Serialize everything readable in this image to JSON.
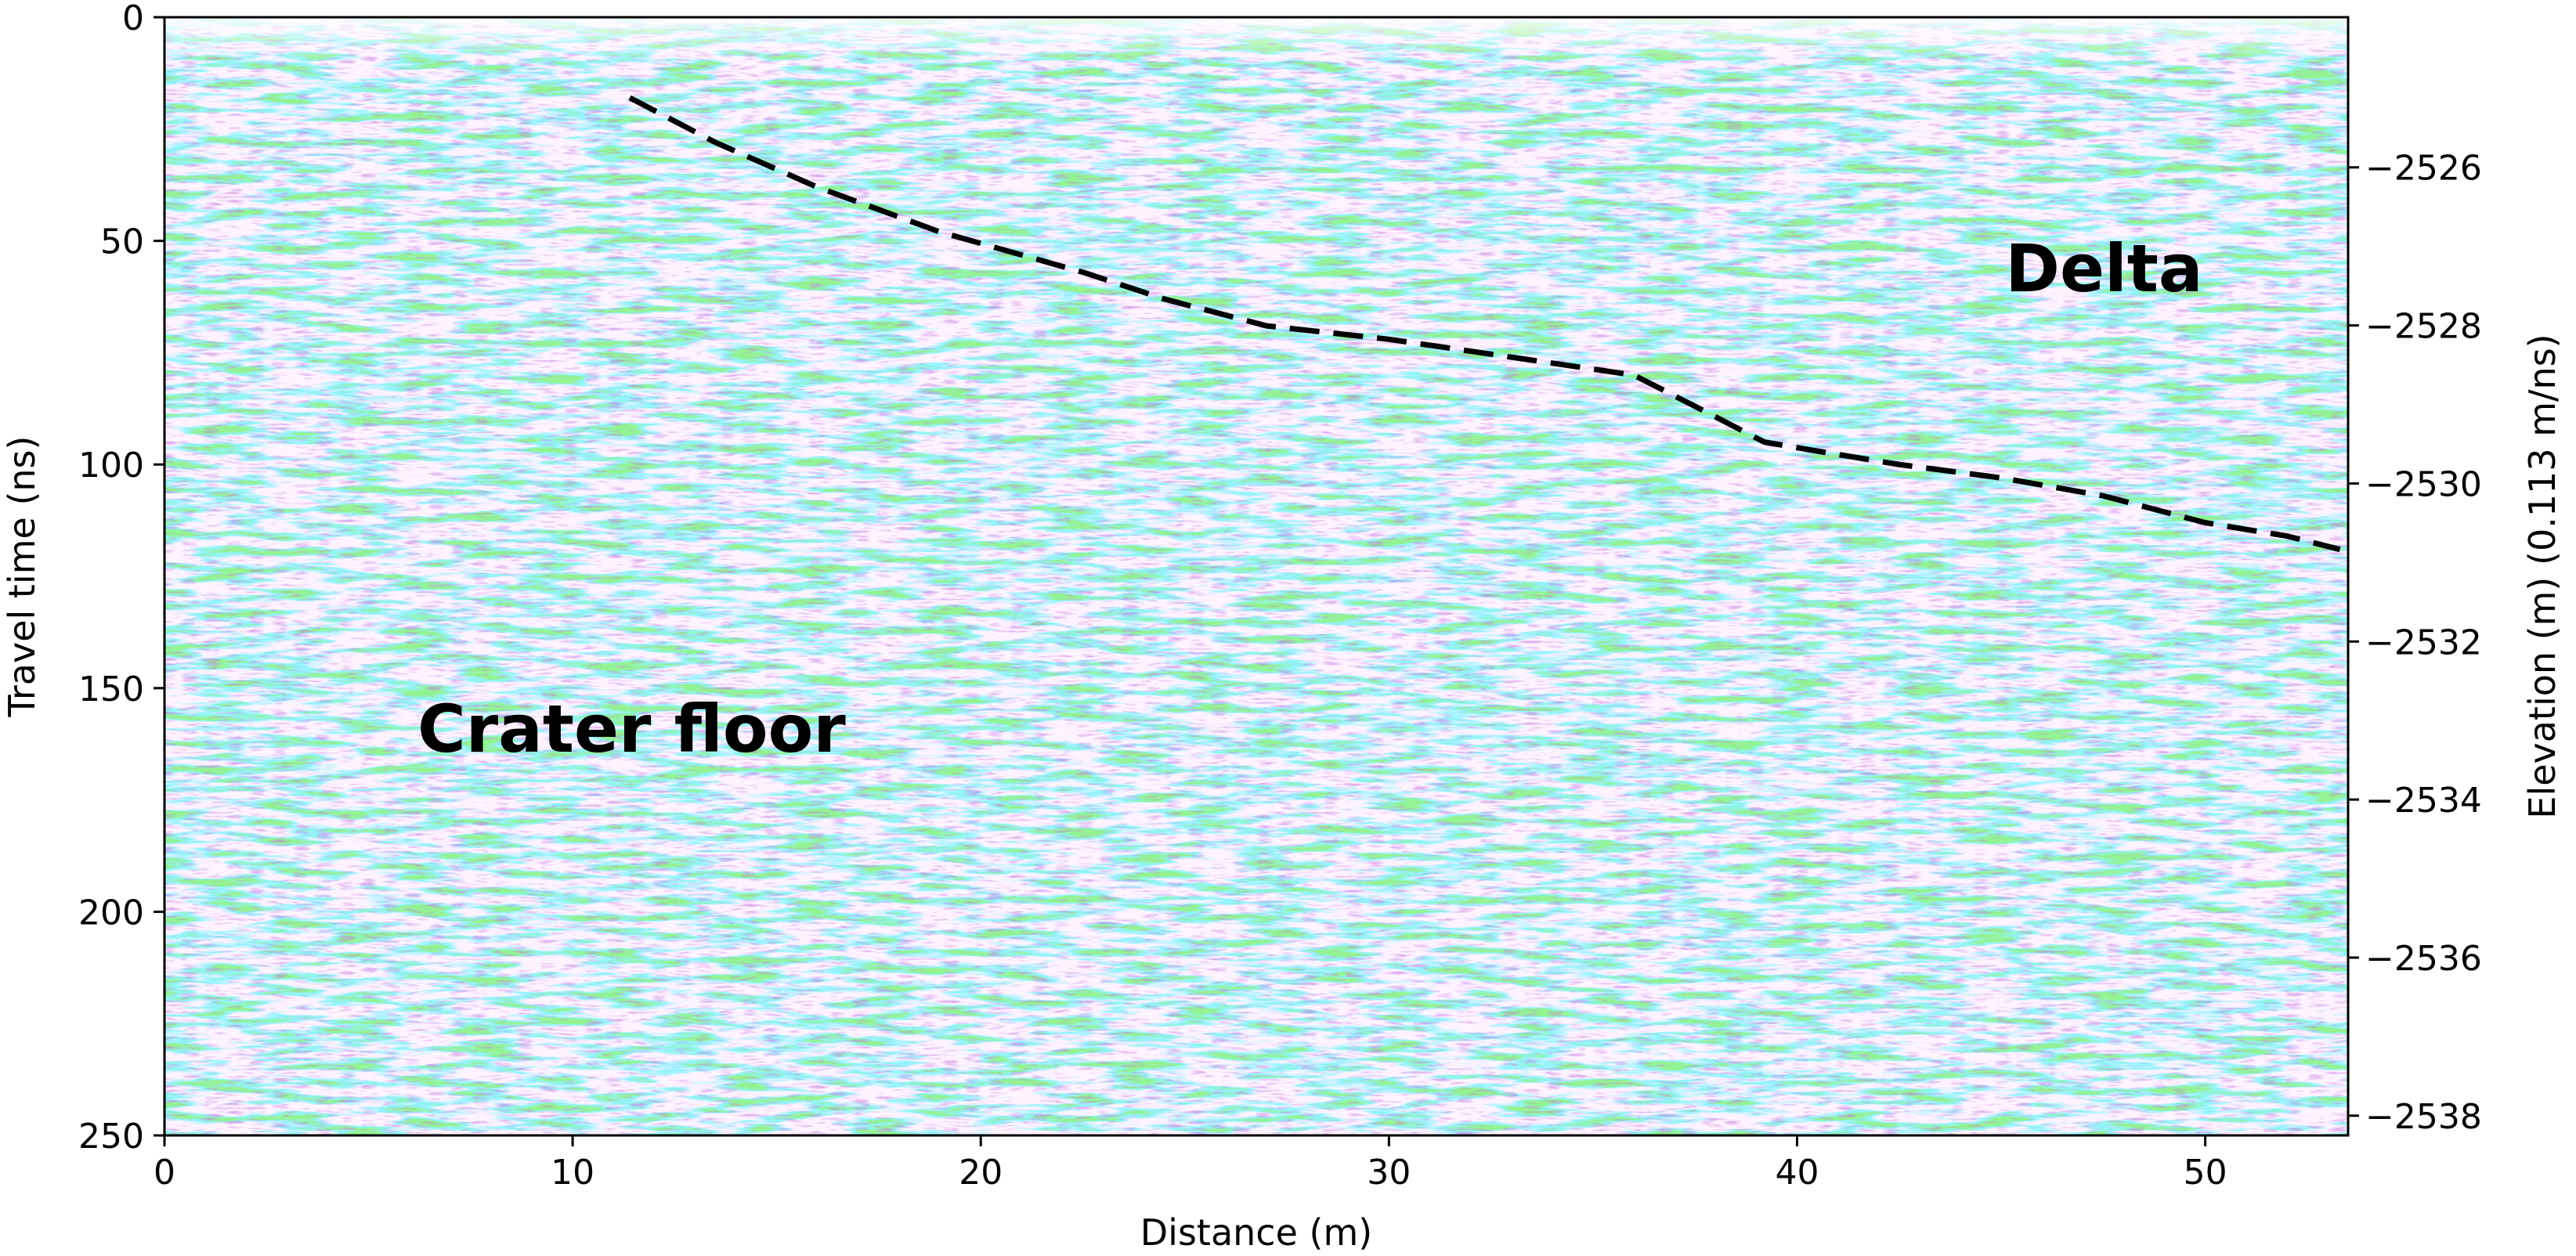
{
  "chart_data": {
    "type": "radargram",
    "title": "",
    "xlabel": "Distance (m)",
    "ylabel": "Travel time (ns)",
    "y2label": "Elevation (m) (0.113 m/ns)",
    "xlim": [
      0,
      53.5
    ],
    "ylim": [
      250,
      0
    ],
    "y2lim": [
      -2538.25,
      -2524.1
    ],
    "x_ticks": [
      0,
      10,
      20,
      30,
      40,
      50
    ],
    "x_tick_labels": [
      "0",
      "10",
      "20",
      "30",
      "40",
      "50"
    ],
    "y_ticks": [
      0,
      50,
      100,
      150,
      200,
      250
    ],
    "y_tick_labels": [
      "0",
      "50",
      "100",
      "150",
      "200",
      "250"
    ],
    "y2_ticks": [
      -2526,
      -2528,
      -2530,
      -2532,
      -2534,
      -2536,
      -2538
    ],
    "y2_tick_labels": [
      "−2526",
      "−2528",
      "−2530",
      "−2532",
      "−2534",
      "−2536",
      "−2538"
    ],
    "grid": false,
    "colormap": [
      "#2b3bd6",
      "#ffffff",
      "#d62b2b"
    ],
    "series": [
      {
        "style": "dashed",
        "color": "#000000",
        "x": [
          11.4,
          13.5,
          16.0,
          19.0,
          22.5,
          24.5,
          27.0,
          30.0,
          33.0,
          36.0,
          37.5,
          39.2,
          40.5,
          42.5,
          45.0,
          47.5,
          50.0,
          52.0,
          53.3
        ],
        "y": [
          18.0,
          28.0,
          38.0,
          48.0,
          57.0,
          63.0,
          69.0,
          72.0,
          76.0,
          80.0,
          87.0,
          95.0,
          97.0,
          100.0,
          103.0,
          107.0,
          113.0,
          116.0,
          119.0
        ]
      }
    ],
    "annotations": [
      {
        "text": "Delta",
        "x": 45.1,
        "y": 56
      },
      {
        "text": "Crater floor",
        "x": 6.2,
        "y": 159
      }
    ]
  }
}
